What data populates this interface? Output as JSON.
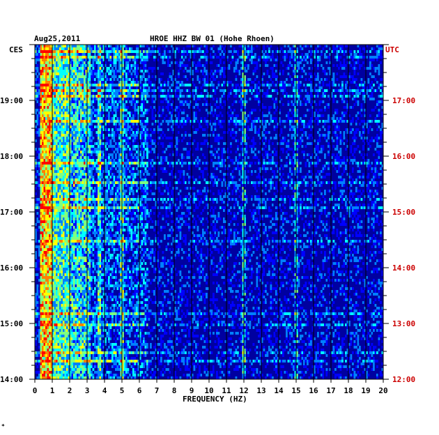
{
  "chart_data": {
    "type": "heatmap",
    "date": "Aug25,2011",
    "title": "HROE HHZ BW 01 (Hohe Rhoen)",
    "left_axis_label": "CES",
    "right_axis_label": "UTC",
    "xlabel": "FREQUENCY (HZ)",
    "xlim": [
      0,
      20
    ],
    "x_ticks": [
      "0",
      "1",
      "2",
      "3",
      "4",
      "5",
      "6",
      "7",
      "8",
      "9",
      "10",
      "11",
      "12",
      "13",
      "14",
      "15",
      "16",
      "17",
      "18",
      "19",
      "20"
    ],
    "left_time_range_hours": [
      14,
      20
    ],
    "left_time_ticks": [
      "19:00",
      "18:00",
      "17:00",
      "16:00",
      "15:00",
      "14:00"
    ],
    "right_time_ticks": [
      "17:00",
      "16:00",
      "15:00",
      "14:00",
      "13:00",
      "12:00"
    ],
    "vertical_grid_every_hz": 1,
    "colormap": [
      "#0000a0",
      "#0000ff",
      "#0080ff",
      "#00ffff",
      "#80ff80",
      "#ffff00",
      "#ff8000",
      "#ff0000"
    ],
    "persistent_lines_hz": [
      3.7,
      5.0,
      12.0,
      15.0
    ],
    "footer_mark": "*"
  },
  "colors": {
    "background": "#0000a0",
    "utc_text": "#cc0000",
    "grid": "#000000"
  }
}
